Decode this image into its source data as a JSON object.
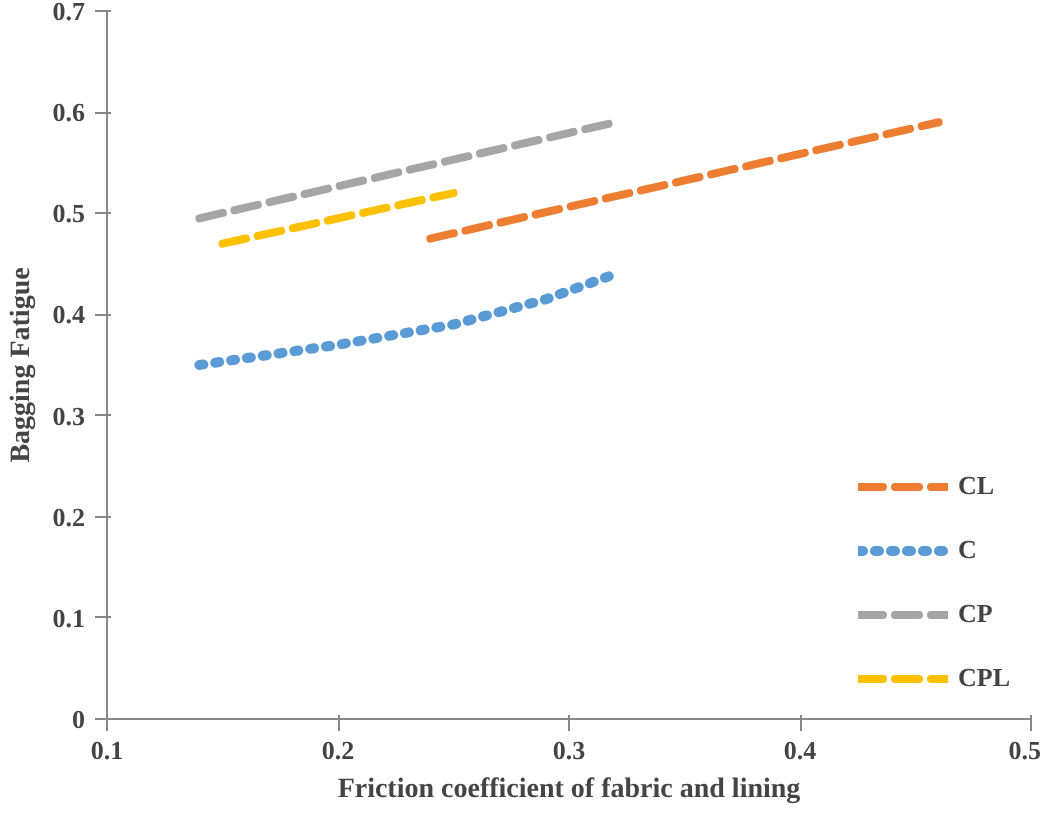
{
  "chart_data": {
    "type": "line",
    "xlabel": "Friction coefficient of fabric and lining",
    "ylabel": "Bagging Fatigue",
    "xlim": [
      0.1,
      0.5
    ],
    "xticks": [
      {
        "value": 0.1,
        "label": "0.1"
      },
      {
        "value": 0.2,
        "label": "0.2"
      },
      {
        "value": 0.3,
        "label": "0.3"
      },
      {
        "value": 0.4,
        "label": "0.4"
      },
      {
        "value": 0.5,
        "label": "0.5"
      }
    ],
    "ylim": [
      0,
      0.7
    ],
    "yticks": [
      {
        "value": 0,
        "label": "0"
      },
      {
        "value": 0.1,
        "label": "0.1"
      },
      {
        "value": 0.2,
        "label": "0.2"
      },
      {
        "value": 0.3,
        "label": "0.3"
      },
      {
        "value": 0.4,
        "label": "0.4"
      },
      {
        "value": 0.5,
        "label": "0.5"
      },
      {
        "value": 0.6,
        "label": "0.6"
      },
      {
        "value": 0.7,
        "label": "0.7"
      }
    ],
    "grid": false,
    "legend": "bottom right",
    "series": [
      {
        "name": "CL",
        "color": "#ed7d31",
        "line_style": "dashed",
        "x": [
          0.24,
          0.46
        ],
        "values": [
          0.475,
          0.59
        ]
      },
      {
        "name": "C",
        "color": "#5b9bd5",
        "line_style": "dotted",
        "x": [
          0.14,
          0.2,
          0.25,
          0.29,
          0.32
        ],
        "values": [
          0.35,
          0.37,
          0.39,
          0.415,
          0.44
        ]
      },
      {
        "name": "CP",
        "color": "#a5a5a5",
        "line_style": "dashed",
        "x": [
          0.14,
          0.32
        ],
        "values": [
          0.495,
          0.59
        ]
      },
      {
        "name": "CPL",
        "color": "#ffc000",
        "line_style": "dashed",
        "x": [
          0.15,
          0.25
        ],
        "values": [
          0.47,
          0.52
        ]
      }
    ]
  }
}
